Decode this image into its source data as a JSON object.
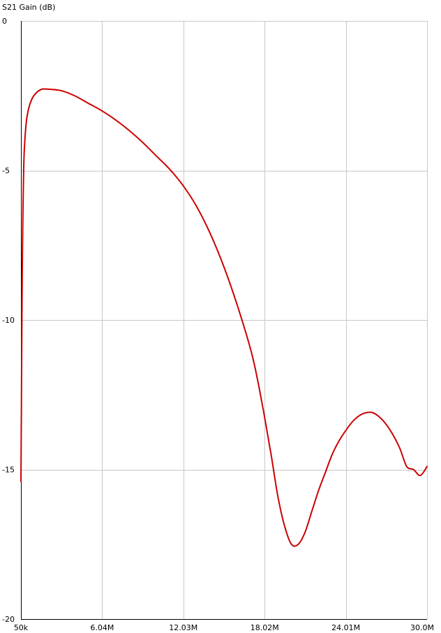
{
  "chart_data": {
    "type": "line",
    "title": "S21 Gain (dB)",
    "xlabel": "",
    "ylabel": "",
    "x_ticks": [
      {
        "value": 50000,
        "label": "50k"
      },
      {
        "value": 6040000,
        "label": "6.04M"
      },
      {
        "value": 12030000,
        "label": "12.03M"
      },
      {
        "value": 18020000,
        "label": "18.02M"
      },
      {
        "value": 24010000,
        "label": "24.01M"
      },
      {
        "value": 30000000,
        "label": "30.0M"
      }
    ],
    "y_ticks": [
      {
        "value": 0,
        "label": "0"
      },
      {
        "value": -5,
        "label": "-5"
      },
      {
        "value": -10,
        "label": "-10"
      },
      {
        "value": -15,
        "label": "-15"
      },
      {
        "value": -20,
        "label": "-20"
      }
    ],
    "xlim": [
      50000,
      30000000
    ],
    "ylim": [
      -20,
      0
    ],
    "grid": true,
    "series": [
      {
        "color": "#cc0000",
        "x": [
          50000,
          80000,
          100000,
          130000,
          160000,
          200000,
          250000,
          300000,
          400000,
          500000,
          700000,
          1000000,
          1500000,
          2000000,
          3000000,
          4000000,
          5000000,
          6000000,
          7000000,
          8000000,
          9000000,
          10000000,
          11000000,
          12000000,
          13000000,
          14000000,
          15000000,
          16000000,
          17000000,
          17500000,
          18000000,
          18500000,
          19000000,
          19500000,
          20000000,
          20500000,
          21000000,
          21500000,
          22000000,
          22500000,
          23000000,
          23500000,
          24000000,
          24500000,
          25000000,
          25500000,
          26000000,
          26500000,
          27000000,
          27500000,
          28000000,
          28500000,
          29000000,
          29500000,
          30000000
        ],
        "y": [
          -15.4,
          -13.3,
          -11.7,
          -9.4,
          -7.8,
          -6.3,
          -5.0,
          -4.3,
          -3.6,
          -3.2,
          -2.8,
          -2.5,
          -2.3,
          -2.28,
          -2.33,
          -2.5,
          -2.75,
          -3.0,
          -3.3,
          -3.65,
          -4.05,
          -4.5,
          -4.95,
          -5.5,
          -6.2,
          -7.1,
          -8.2,
          -9.5,
          -11.0,
          -12.0,
          -13.2,
          -14.5,
          -15.9,
          -16.9,
          -17.5,
          -17.5,
          -17.1,
          -16.4,
          -15.7,
          -15.1,
          -14.5,
          -14.05,
          -13.7,
          -13.4,
          -13.2,
          -13.1,
          -13.1,
          -13.25,
          -13.5,
          -13.85,
          -14.3,
          -14.9,
          -15.0,
          -15.2,
          -14.9
        ]
      }
    ]
  }
}
